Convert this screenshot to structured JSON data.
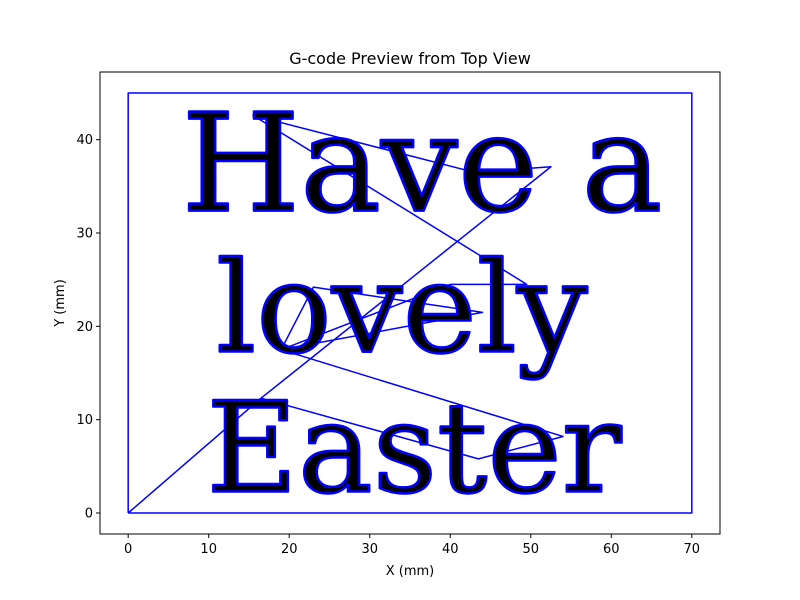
{
  "chart_data": {
    "type": "line",
    "title": "G-code Preview from Top View",
    "xlabel": "X (mm)",
    "ylabel": "Y (mm)",
    "xlim": [
      -3.5,
      73.5
    ],
    "ylim": [
      -2.25,
      47.25
    ],
    "xticks": [
      0,
      10,
      20,
      30,
      40,
      50,
      60,
      70
    ],
    "yticks": [
      0,
      10,
      20,
      30,
      40
    ],
    "grid": false,
    "line_color": "#0000ff",
    "series": [
      {
        "values": [
          {
            "x": 0,
            "y": 0
          },
          {
            "x": 70,
            "y": 0
          },
          {
            "x": 70,
            "y": 45
          },
          {
            "x": 0,
            "y": 45
          },
          {
            "x": 0,
            "y": 0
          }
        ]
      },
      {
        "values": [
          {
            "x": 0,
            "y": 0
          },
          {
            "x": 16.5,
            "y": 12.3
          },
          {
            "x": 52.5,
            "y": 37.1
          },
          {
            "x": 43,
            "y": 36.5
          },
          {
            "x": 15.5,
            "y": 42.6
          },
          {
            "x": 49.5,
            "y": 24.5
          },
          {
            "x": 40,
            "y": 24.5
          },
          {
            "x": 19,
            "y": 17.5
          },
          {
            "x": 44,
            "y": 21.5
          },
          {
            "x": 23,
            "y": 24.2
          },
          {
            "x": 19,
            "y": 17.5
          },
          {
            "x": 54,
            "y": 8.2
          },
          {
            "x": 43.5,
            "y": 5.8
          },
          {
            "x": 16.5,
            "y": 12.3
          }
        ]
      }
    ],
    "text_glyphs": [
      {
        "text": "Have a",
        "x": 36.5,
        "y": 32.4,
        "height_mm": 13
      },
      {
        "text": "lovely",
        "x": 34,
        "y": 17.3,
        "height_mm": 12
      },
      {
        "text": "Easter",
        "x": 35.5,
        "y": 2.3,
        "height_mm": 12
      }
    ]
  }
}
